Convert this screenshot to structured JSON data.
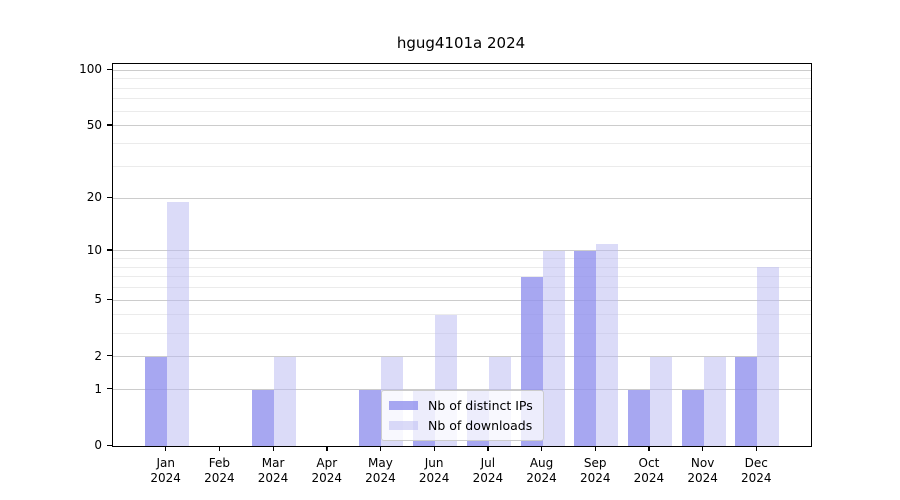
{
  "chart_data": {
    "type": "bar",
    "title": "hgug4101a 2024",
    "categories": [
      "Jan",
      "Feb",
      "Mar",
      "Apr",
      "May",
      "Jun",
      "Jul",
      "Aug",
      "Sep",
      "Oct",
      "Nov",
      "Dec"
    ],
    "x_year_label": "2024",
    "series": [
      {
        "name": "Nb of distinct IPs",
        "color": "rgba(145,145,237,0.8)",
        "values": [
          2,
          0,
          1,
          0,
          1,
          1,
          1,
          7,
          10,
          1,
          1,
          2
        ]
      },
      {
        "name": "Nb of downloads",
        "color": "rgba(183,183,241,0.5)",
        "values": [
          19,
          0,
          2,
          0,
          2,
          4,
          2,
          10,
          11,
          2,
          2,
          8
        ]
      }
    ],
    "yscale": "log1p",
    "ylim": [
      0,
      108
    ],
    "y_tick_labels": [
      0,
      1,
      2,
      5,
      10,
      20,
      50,
      100
    ],
    "y_major_gridlines": [
      1,
      2,
      5,
      10,
      20,
      50,
      100
    ],
    "y_minor_gridlines": [
      3,
      4,
      6,
      7,
      8,
      9,
      30,
      40,
      60,
      70,
      80,
      90
    ],
    "grid": "on",
    "legend_position": "lower center",
    "colors": {
      "grid_major": "#cccccc",
      "grid_minor": "#ebebeb",
      "spine": "#000000",
      "background": "#ffffff"
    }
  }
}
